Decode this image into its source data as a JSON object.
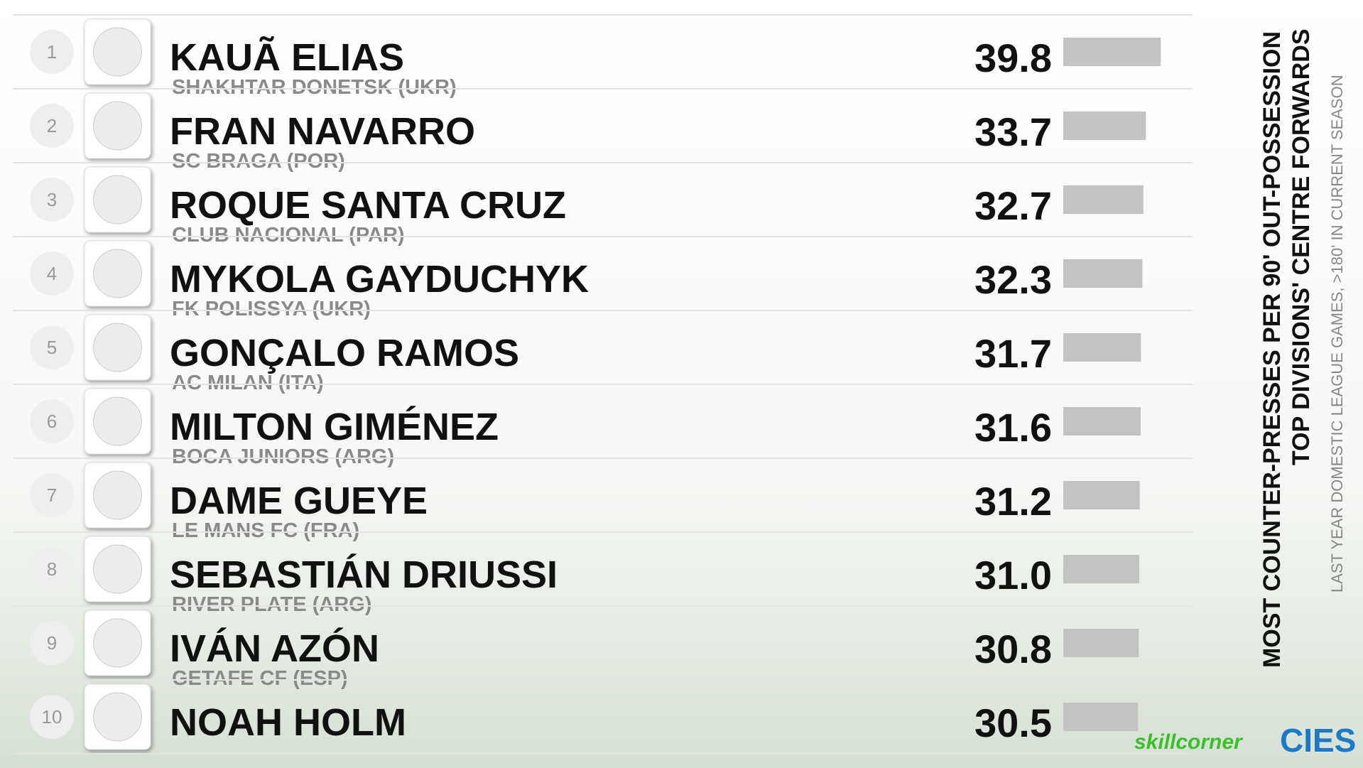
{
  "chart_data": {
    "type": "bar",
    "title": [
      "MOST COUNTER-PRESSES PER 90' OUT-POSSESSION",
      "TOP DIVISIONS' CENTRE FORWARDS"
    ],
    "subtitle": "LAST YEAR DOMESTIC LEAGUE GAMES, >180' IN CURRENT SEASON",
    "ranks": [
      1,
      2,
      3,
      4,
      5,
      6,
      7,
      8,
      9,
      10
    ],
    "categories": [
      "KAUÃ ELIAS",
      "FRAN NAVARRO",
      "ROQUE SANTA CRUZ",
      "MYKOLA GAYDUCHYK",
      "GONÇALO RAMOS",
      "MILTON GIMÉNEZ",
      "DAME GUEYE",
      "SEBASTIÁN DRIUSSI",
      "IVÁN AZÓN",
      "NOAH HOLM"
    ],
    "clubs": [
      "SHAKHTAR DONETSK (UKR)",
      "SC BRAGA (POR)",
      "CLUB NACIONAL (PAR)",
      "FK POLISSYA (UKR)",
      "AC MILAN (ITA)",
      "BOCA JUNIORS (ARG)",
      "LE MANS FC (FRA)",
      "RIVER PLATE (ARG)",
      "GETAFE CF (ESP)",
      null
    ],
    "values": [
      39.8,
      33.7,
      32.7,
      32.3,
      31.7,
      31.6,
      31.2,
      31.0,
      30.8,
      30.5
    ],
    "value_labels": [
      "39.8",
      "33.7",
      "32.7",
      "32.3",
      "31.7",
      "31.6",
      "31.2",
      "31.0",
      "30.8",
      "30.5"
    ],
    "color": "#c3c3c3",
    "logos": [
      "skillcorner",
      "CIES"
    ]
  }
}
